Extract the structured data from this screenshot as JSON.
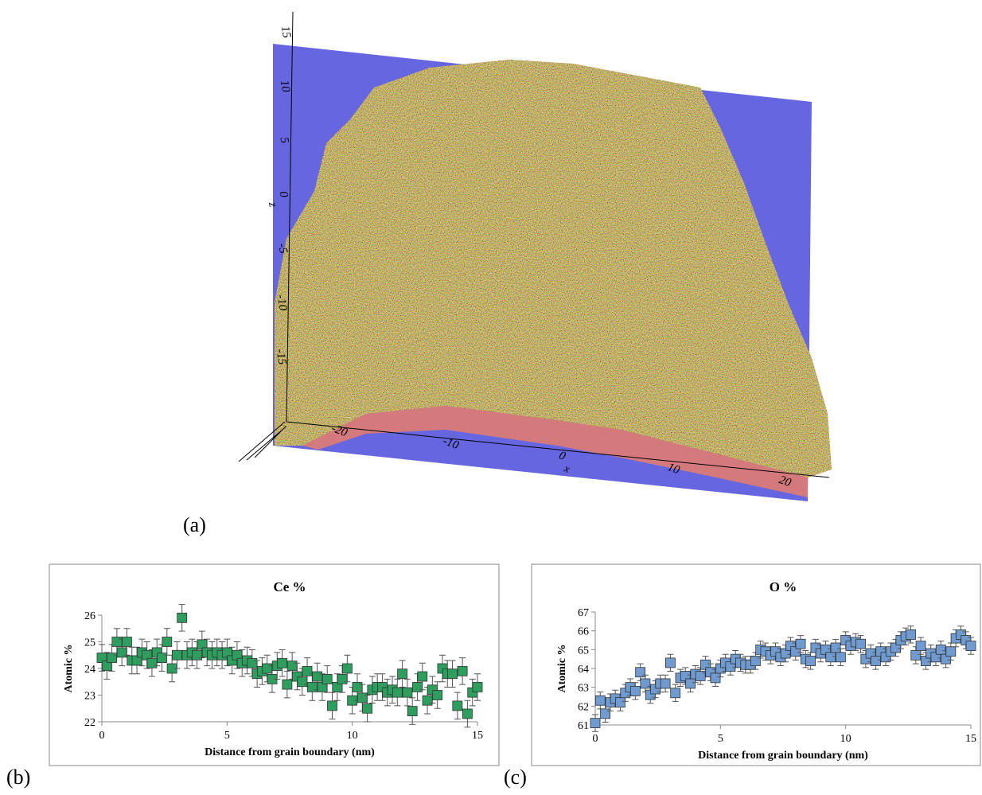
{
  "reconstruction": {
    "zlabel": "z",
    "zticks": [
      15,
      10,
      5,
      0,
      -5,
      -10,
      -15
    ],
    "xlabel": "x",
    "xticks": [
      -20,
      -10,
      0,
      10,
      20
    ]
  },
  "panel_labels": [
    "(a)",
    "(b)",
    "(c)"
  ],
  "chart_data": [
    {
      "type": "scatter",
      "title": "Ce %",
      "xlabel": "Distance from grain boundary (nm)",
      "ylabel": "Atomic %",
      "xlim": [
        0,
        15
      ],
      "xticks": [
        0,
        5,
        10,
        15
      ],
      "ylim": [
        22,
        26
      ],
      "yticks": [
        22,
        23,
        24,
        25,
        26
      ],
      "color": "#2e9e5e",
      "error": 0.5,
      "x": [
        0,
        0.2,
        0.4,
        0.6,
        0.8,
        1,
        1.2,
        1.4,
        1.6,
        1.8,
        2,
        2.2,
        2.4,
        2.6,
        2.8,
        3,
        3.2,
        3.4,
        3.6,
        3.8,
        4,
        4.2,
        4.4,
        4.6,
        4.8,
        5,
        5.2,
        5.4,
        5.6,
        5.8,
        6,
        6.2,
        6.4,
        6.6,
        6.8,
        7,
        7.2,
        7.4,
        7.6,
        7.8,
        8,
        8.2,
        8.4,
        8.6,
        8.8,
        9,
        9.2,
        9.4,
        9.6,
        9.8,
        10,
        10.2,
        10.4,
        10.6,
        10.8,
        11,
        11.2,
        11.4,
        11.6,
        11.8,
        12,
        12.2,
        12.4,
        12.6,
        12.8,
        13,
        13.2,
        13.4,
        13.6,
        13.8,
        14,
        14.2,
        14.4,
        14.6,
        14.8,
        15
      ],
      "values": [
        24.4,
        24.1,
        24.4,
        25.0,
        24.6,
        25.0,
        24.3,
        24.3,
        24.6,
        24.5,
        24.2,
        24.6,
        24.4,
        25.0,
        24.0,
        24.5,
        25.9,
        24.5,
        24.6,
        24.5,
        24.9,
        24.6,
        24.5,
        24.6,
        24.5,
        24.6,
        24.3,
        24.5,
        24.2,
        24.3,
        24.2,
        23.8,
        23.9,
        24.0,
        23.6,
        24.1,
        24.2,
        23.4,
        24.1,
        23.7,
        23.5,
        23.9,
        23.3,
        23.7,
        23.3,
        23.6,
        22.6,
        23.3,
        23.6,
        24.0,
        22.8,
        23.3,
        22.9,
        22.5,
        23.2,
        23.3,
        23.3,
        23.1,
        23.2,
        23.1,
        23.8,
        23.1,
        22.4,
        23.3,
        23.7,
        22.8,
        23.2,
        23.0,
        24.0,
        23.8,
        23.8,
        22.6,
        23.9,
        22.3,
        23.1,
        23.3
      ]
    },
    {
      "type": "scatter",
      "title": "O %",
      "xlabel": "Distance from grain boundary (nm)",
      "ylabel": "Atomic %",
      "xlim": [
        0,
        15
      ],
      "xticks": [
        0,
        5,
        10,
        15
      ],
      "ylim": [
        61,
        67
      ],
      "yticks": [
        61,
        62,
        63,
        64,
        65,
        66,
        67
      ],
      "color": "#6f9bd1",
      "error": 0.45,
      "x": [
        0,
        0.2,
        0.4,
        0.6,
        0.8,
        1,
        1.2,
        1.4,
        1.6,
        1.8,
        2,
        2.2,
        2.4,
        2.6,
        2.8,
        3,
        3.2,
        3.4,
        3.6,
        3.8,
        4,
        4.2,
        4.4,
        4.6,
        4.8,
        5,
        5.2,
        5.4,
        5.6,
        5.8,
        6,
        6.2,
        6.4,
        6.6,
        6.8,
        7,
        7.2,
        7.4,
        7.6,
        7.8,
        8,
        8.2,
        8.4,
        8.6,
        8.8,
        9,
        9.2,
        9.4,
        9.6,
        9.8,
        10,
        10.2,
        10.4,
        10.6,
        10.8,
        11,
        11.2,
        11.4,
        11.6,
        11.8,
        12,
        12.2,
        12.4,
        12.6,
        12.8,
        13,
        13.2,
        13.4,
        13.6,
        13.8,
        14,
        14.2,
        14.4,
        14.6,
        14.8,
        15
      ],
      "values": [
        61.1,
        62.3,
        61.6,
        62.2,
        62.4,
        62.2,
        62.7,
        63.0,
        62.8,
        63.8,
        63.2,
        62.6,
        62.9,
        63.2,
        63.2,
        64.3,
        62.7,
        63.5,
        63.6,
        63.2,
        63.7,
        63.6,
        64.2,
        63.8,
        63.5,
        64.0,
        64.3,
        64.1,
        64.5,
        64.3,
        64.2,
        64.2,
        64.4,
        65.0,
        64.9,
        64.7,
        64.9,
        64.6,
        64.8,
        65.2,
        64.9,
        65.3,
        64.5,
        64.4,
        65.1,
        64.8,
        65.0,
        64.6,
        65.1,
        64.6,
        65.5,
        65.2,
        65.4,
        65.3,
        64.5,
        64.8,
        64.4,
        64.9,
        64.6,
        64.9,
        65.1,
        65.5,
        65.7,
        65.8,
        64.7,
        65.2,
        64.4,
        64.8,
        64.6,
        65.0,
        64.5,
        64.9,
        65.6,
        65.8,
        65.5,
        65.2
      ]
    }
  ]
}
